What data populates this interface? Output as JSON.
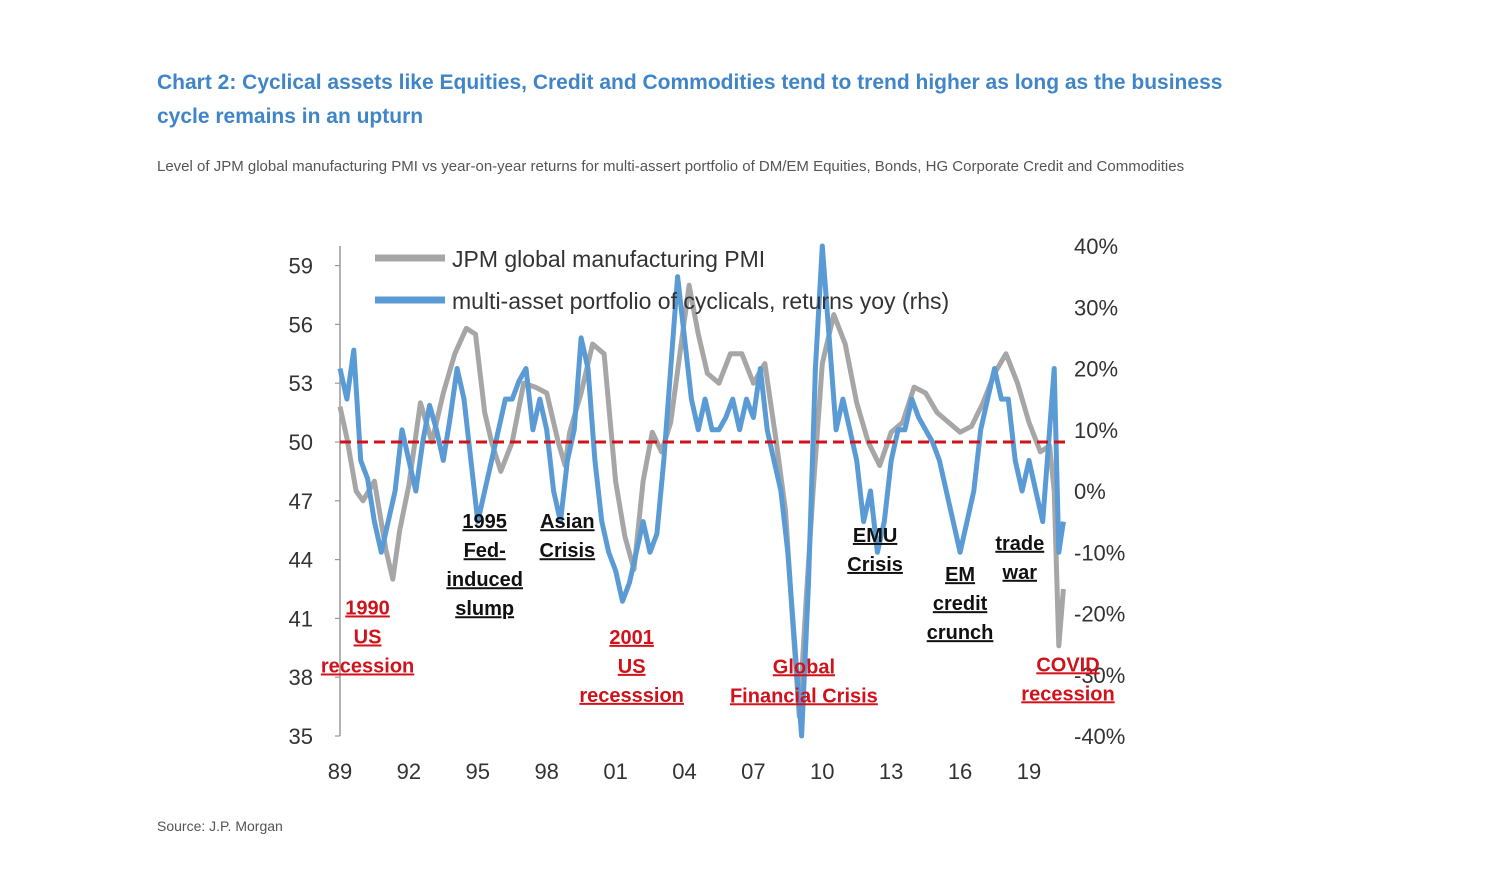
{
  "header": {
    "title": "Chart 2: Cyclical assets like Equities, Credit and Commodities tend to trend higher as long as the business cycle remains in an upturn",
    "subtitle": "Level of JPM global manufacturing PMI vs year-on-year returns for multi-assert portfolio of DM/EM Equities, Bonds, HG Corporate Credit and Commodities"
  },
  "footer": {
    "source": "Source: J.P. Morgan"
  },
  "colors": {
    "pmi": "#a6a6a6",
    "portfolio": "#5b9bd5",
    "threshold": "#d0121b",
    "title": "#3f85c8",
    "annotation_recession": "#d0121b",
    "annotation_event": "#111111"
  },
  "chart_data": {
    "type": "line",
    "title": "",
    "legend_position": "top-left",
    "grid": false,
    "x_axis": {
      "ticks": [
        "89",
        "92",
        "95",
        "98",
        "01",
        "04",
        "07",
        "10",
        "13",
        "16",
        "19"
      ],
      "range": [
        1989,
        2020.7
      ]
    },
    "y_axis_left": {
      "ticks": [
        "59",
        "56",
        "53",
        "50",
        "47",
        "44",
        "41",
        "38",
        "35"
      ],
      "range": [
        35,
        60
      ]
    },
    "y_axis_right": {
      "ticks": [
        "40%",
        "30%",
        "20%",
        "10%",
        "0%",
        "-10%",
        "-20%",
        "-30%",
        "-40%"
      ],
      "range": [
        -40,
        40
      ]
    },
    "reference_line": {
      "axis": "left",
      "value": 50,
      "style": "dashed"
    },
    "series": [
      {
        "name": "JPM global manufacturing PMI",
        "axis": "left",
        "x": [
          1989.0,
          1989.3,
          1989.7,
          1990.0,
          1990.5,
          1991.0,
          1991.3,
          1991.6,
          1992.0,
          1992.5,
          1993.0,
          1993.5,
          1994.0,
          1994.5,
          1994.9,
          1995.3,
          1995.6,
          1996.0,
          1996.5,
          1997.0,
          1997.5,
          1998.0,
          1998.5,
          1998.8,
          1999.0,
          1999.5,
          2000.0,
          2000.5,
          2001.0,
          2001.4,
          2001.8,
          2002.2,
          2002.6,
          2003.0,
          2003.4,
          2003.8,
          2004.2,
          2004.6,
          2005.0,
          2005.5,
          2006.0,
          2006.5,
          2007.0,
          2007.5,
          2008.0,
          2008.4,
          2008.7,
          2009.0,
          2009.3,
          2009.6,
          2010.0,
          2010.5,
          2011.0,
          2011.5,
          2012.0,
          2012.5,
          2013.0,
          2013.5,
          2014.0,
          2014.5,
          2015.0,
          2015.5,
          2016.0,
          2016.5,
          2017.0,
          2017.5,
          2018.0,
          2018.5,
          2019.0,
          2019.5,
          2019.9,
          2020.1,
          2020.3,
          2020.5
        ],
        "values": [
          51.8,
          50.2,
          47.5,
          47.0,
          48.0,
          44.5,
          43.0,
          45.5,
          47.8,
          52.0,
          50.0,
          52.5,
          54.5,
          55.8,
          55.5,
          51.5,
          50.0,
          48.5,
          50.0,
          53.0,
          52.8,
          52.5,
          50.0,
          48.8,
          50.5,
          52.5,
          55.0,
          54.5,
          48.0,
          45.2,
          43.5,
          48.0,
          50.5,
          49.5,
          51.0,
          54.5,
          58.0,
          55.5,
          53.5,
          53.0,
          54.5,
          54.5,
          53.0,
          54.0,
          50.0,
          46.5,
          41.0,
          36.0,
          42.0,
          47.5,
          54.0,
          56.5,
          55.0,
          52.0,
          50.0,
          48.8,
          50.5,
          51.0,
          52.8,
          52.5,
          51.5,
          51.0,
          50.5,
          50.8,
          52.0,
          53.5,
          54.5,
          53.0,
          51.0,
          49.5,
          49.8,
          47.5,
          39.6,
          42.5
        ]
      },
      {
        "name": "multi-asset portfolio of cyclicals, returns yoy (rhs)",
        "axis": "right",
        "x": [
          1989.0,
          1989.3,
          1989.6,
          1989.9,
          1990.2,
          1990.5,
          1990.8,
          1991.1,
          1991.4,
          1991.7,
          1992.0,
          1992.3,
          1992.6,
          1992.9,
          1993.2,
          1993.5,
          1993.8,
          1994.1,
          1994.4,
          1994.7,
          1995.0,
          1995.3,
          1995.6,
          1995.9,
          1996.2,
          1996.5,
          1996.8,
          1997.1,
          1997.4,
          1997.7,
          1998.0,
          1998.3,
          1998.6,
          1998.9,
          1999.2,
          1999.5,
          1999.8,
          2000.1,
          2000.4,
          2000.7,
          2001.0,
          2001.3,
          2001.6,
          2001.9,
          2002.2,
          2002.5,
          2002.8,
          2003.1,
          2003.4,
          2003.7,
          2004.0,
          2004.3,
          2004.6,
          2004.9,
          2005.2,
          2005.5,
          2005.8,
          2006.1,
          2006.4,
          2006.7,
          2007.0,
          2007.3,
          2007.6,
          2007.9,
          2008.2,
          2008.5,
          2008.8,
          2009.1,
          2009.4,
          2009.7,
          2010.0,
          2010.3,
          2010.6,
          2010.9,
          2011.2,
          2011.5,
          2011.8,
          2012.1,
          2012.4,
          2012.7,
          2013.0,
          2013.3,
          2013.6,
          2013.9,
          2014.2,
          2014.5,
          2014.8,
          2015.1,
          2015.4,
          2015.7,
          2016.0,
          2016.3,
          2016.6,
          2016.9,
          2017.2,
          2017.5,
          2017.8,
          2018.1,
          2018.4,
          2018.7,
          2019.0,
          2019.3,
          2019.6,
          2019.9,
          2020.1,
          2020.3,
          2020.5
        ],
        "values": [
          20.0,
          15.0,
          23.0,
          5.0,
          2.0,
          -5.0,
          -10.0,
          -5.0,
          0.0,
          10.0,
          5.0,
          0.0,
          8.0,
          14.0,
          10.0,
          5.0,
          12.0,
          20.0,
          15.0,
          5.0,
          -5.0,
          0.0,
          5.0,
          10.0,
          15.0,
          15.0,
          18.0,
          20.0,
          10.0,
          15.0,
          10.0,
          0.0,
          -5.0,
          5.0,
          10.0,
          25.0,
          20.0,
          5.0,
          -5.0,
          -10.0,
          -13.0,
          -18.0,
          -15.0,
          -10.0,
          -5.0,
          -10.0,
          -7.0,
          5.0,
          20.0,
          35.0,
          25.0,
          15.0,
          10.0,
          15.0,
          10.0,
          10.0,
          12.0,
          15.0,
          10.0,
          15.0,
          12.0,
          20.0,
          10.0,
          5.0,
          0.0,
          -10.0,
          -25.0,
          -40.0,
          -15.0,
          20.0,
          40.0,
          25.0,
          10.0,
          15.0,
          10.0,
          5.0,
          -5.0,
          0.0,
          -10.0,
          -5.0,
          5.0,
          10.0,
          10.0,
          15.0,
          12.0,
          10.0,
          8.0,
          5.0,
          0.0,
          -5.0,
          -10.0,
          -5.0,
          0.0,
          10.0,
          15.0,
          20.0,
          15.0,
          15.0,
          5.0,
          0.0,
          5.0,
          0.0,
          -5.0,
          10.0,
          20.0,
          -10.0,
          -5.0
        ]
      }
    ],
    "annotations": [
      {
        "text": [
          "1990",
          "US",
          "recession"
        ],
        "color": "red",
        "x": 1990.2,
        "y": 41.2,
        "axis": "left"
      },
      {
        "text": [
          "1995",
          "Fed-",
          "induced",
          "slump"
        ],
        "color": "black",
        "x": 1995.3,
        "y": 45.6,
        "axis": "left"
      },
      {
        "text": [
          "Asian",
          "Crisis"
        ],
        "color": "black",
        "x": 1998.9,
        "y": 45.6,
        "axis": "left"
      },
      {
        "text": [
          "2001",
          "US",
          "recesssion"
        ],
        "color": "red",
        "x": 2001.7,
        "y": 39.7,
        "axis": "left"
      },
      {
        "text": [
          "Global",
          "Financial Crisis"
        ],
        "color": "red",
        "x": 2009.2,
        "y": 38.2,
        "axis": "left"
      },
      {
        "text": [
          "EMU",
          "Crisis"
        ],
        "color": "black",
        "x": 2012.3,
        "y": 44.9,
        "axis": "left"
      },
      {
        "text": [
          "EM",
          "credit",
          "crunch"
        ],
        "color": "black",
        "x": 2016.0,
        "y": 42.9,
        "axis": "left"
      },
      {
        "text": [
          "trade",
          "war"
        ],
        "color": "black",
        "x": 2018.6,
        "y": 44.5,
        "axis": "left"
      },
      {
        "text": [
          "COVID",
          "recession"
        ],
        "color": "red",
        "x": 2020.7,
        "y": 38.3,
        "axis": "left"
      }
    ]
  }
}
